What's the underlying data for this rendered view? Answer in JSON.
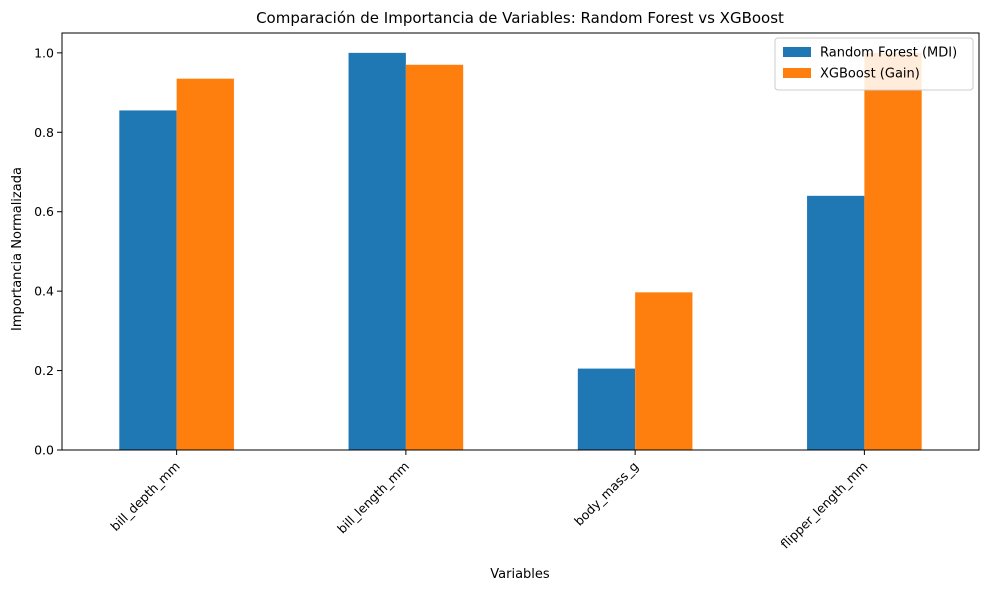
{
  "chart_data": {
    "type": "bar",
    "title": "Comparación de Importancia de Variables: Random Forest vs XGBoost",
    "xlabel": "Variables",
    "ylabel": "Importancia Normalizada",
    "categories": [
      "bill_depth_mm",
      "bill_length_mm",
      "body_mass_g",
      "flipper_length_mm"
    ],
    "series": [
      {
        "name": "Random Forest (MDI)",
        "values": [
          0.855,
          1.0,
          0.205,
          0.64
        ],
        "color": "#1f77b4"
      },
      {
        "name": "XGBoost (Gain)",
        "values": [
          0.935,
          0.97,
          0.397,
          1.0
        ],
        "color": "#ff7f0e"
      }
    ],
    "ylim": [
      0,
      1.05
    ],
    "yticks": [
      0.0,
      0.2,
      0.4,
      0.6,
      0.8,
      1.0
    ],
    "ytick_labels": [
      "0.0",
      "0.2",
      "0.4",
      "0.6",
      "0.8",
      "1.0"
    ],
    "grid": false,
    "legend_position": "top-right"
  }
}
